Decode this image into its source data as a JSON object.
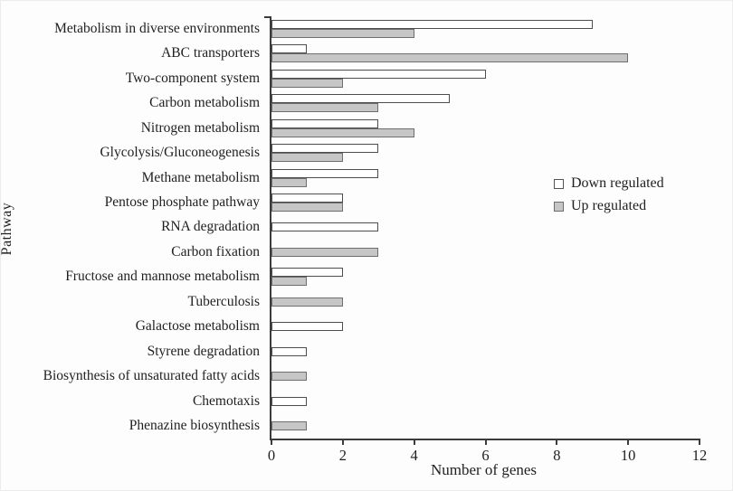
{
  "figure": {
    "x_axis_label": "Number of genes",
    "y_axis_label": "Pathway"
  },
  "legend": {
    "down_label": "Down regulated",
    "up_label": "Up regulated"
  },
  "colors": {
    "down_fill": "#ffffff",
    "down_border": "#4d4d4d",
    "up_fill": "#c6c6c6",
    "up_border": "#6e6e6e",
    "axis": "#3c3c3c",
    "text": "#1f1f1f"
  },
  "chart_data": {
    "type": "bar",
    "orientation": "horizontal",
    "title": "",
    "xlabel": "Number of genes",
    "ylabel": "Pathway",
    "xlim": [
      0,
      12
    ],
    "x_ticks": [
      0,
      2,
      4,
      6,
      8,
      10,
      12
    ],
    "grid": false,
    "legend_position": "middle-right",
    "categories": [
      "Metabolism in diverse environments",
      "ABC transporters",
      "Two-component system",
      "Carbon metabolism",
      "Nitrogen metabolism",
      "Glycolysis/Gluconeogenesis",
      "Methane metabolism",
      "Pentose phosphate pathway",
      "RNA degradation",
      "Carbon fixation",
      "Fructose and mannose metabolism",
      "Tuberculosis",
      "Galactose metabolism",
      "Styrene degradation",
      "Biosynthesis of unsaturated fatty acids",
      "Chemotaxis",
      "Phenazine biosynthesis"
    ],
    "series": [
      {
        "name": "Down regulated",
        "values": [
          9,
          1,
          6,
          5,
          3,
          3,
          3,
          2,
          3,
          0,
          2,
          0,
          2,
          1,
          0,
          1,
          0
        ]
      },
      {
        "name": "Up regulated",
        "values": [
          4,
          10,
          2,
          3,
          4,
          2,
          1,
          2,
          0,
          3,
          1,
          2,
          0,
          0,
          1,
          0,
          1
        ]
      }
    ]
  }
}
